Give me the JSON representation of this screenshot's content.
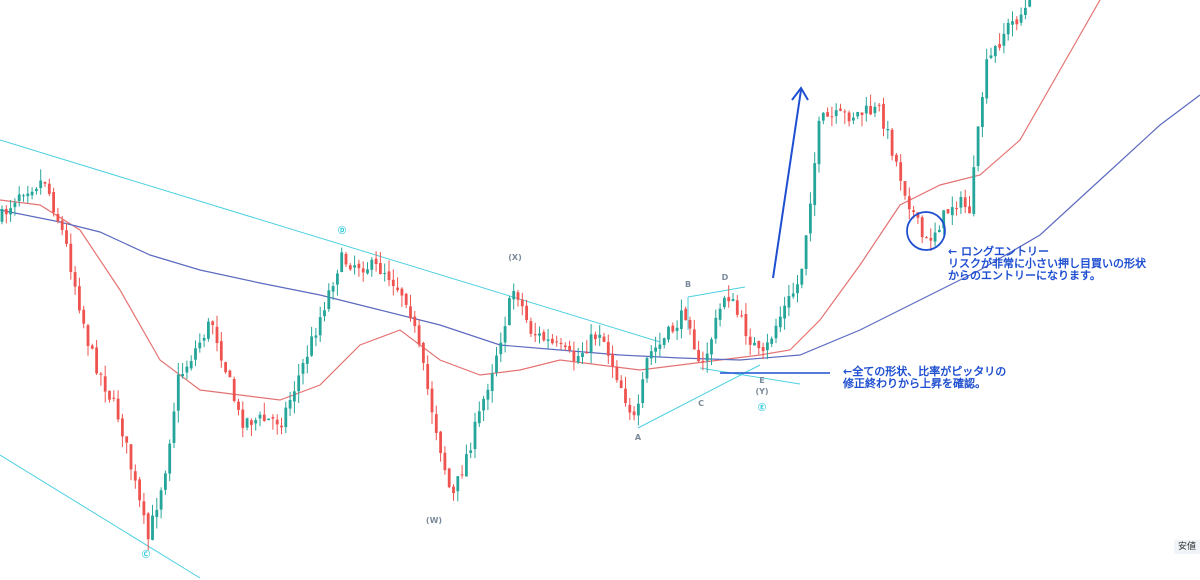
{
  "chart_data": {
    "type": "candlestick",
    "title": "",
    "xlabel": "",
    "ylabel": "",
    "ylim": [
      0,
      580
    ],
    "colors": {
      "up": "#26a69a",
      "down": "#ef5350",
      "ma_fast": "#e57373",
      "ma_slow": "#5c6bc0",
      "trendline": "#4dd0e1",
      "annotation": "#1f4fd1",
      "wave_label": "#7b8a9a",
      "wave_label_circled": "#26c6da"
    },
    "series": [
      {
        "name": "",
        "kind": "price_path",
        "x": [
          0,
          20,
          45,
          65,
          90,
          120,
          148,
          165,
          178,
          212,
          240,
          282,
          305,
          340,
          385,
          408,
          430,
          452,
          478,
          515,
          530,
          575,
          600,
          636,
          648,
          660,
          688,
          700,
          726,
          740,
          762,
          778,
          800,
          820,
          880,
          905,
          925,
          955,
          970,
          985,
          1005,
          1030
        ],
        "y": [
          220,
          190,
          180,
          240,
          350,
          420,
          540,
          470,
          380,
          320,
          420,
          420,
          360,
          260,
          270,
          300,
          400,
          500,
          420,
          285,
          330,
          360,
          330,
          425,
          355,
          345,
          310,
          375,
          290,
          320,
          360,
          320,
          280,
          120,
          110,
          190,
          245,
          200,
          210,
          70,
          30,
          5
        ]
      },
      {
        "name": "",
        "kind": "ma_fast",
        "x": [
          0,
          40,
          80,
          120,
          160,
          200,
          240,
          280,
          320,
          360,
          400,
          440,
          480,
          520,
          560,
          600,
          640,
          680,
          720,
          760,
          790,
          820,
          860,
          900,
          940,
          980,
          1020,
          1060,
          1100
        ],
        "y": [
          200,
          205,
          230,
          290,
          360,
          390,
          395,
          400,
          385,
          345,
          330,
          360,
          375,
          370,
          360,
          365,
          370,
          365,
          360,
          355,
          350,
          320,
          265,
          205,
          185,
          175,
          140,
          70,
          0
        ]
      },
      {
        "name": "",
        "kind": "ma_slow",
        "x": [
          0,
          60,
          100,
          150,
          200,
          260,
          320,
          380,
          440,
          500,
          560,
          620,
          680,
          740,
          800,
          860,
          920,
          980,
          1040,
          1100,
          1160,
          1200
        ],
        "y": [
          210,
          222,
          232,
          255,
          270,
          283,
          295,
          310,
          325,
          345,
          350,
          355,
          358,
          360,
          355,
          330,
          300,
          270,
          235,
          180,
          125,
          95
        ]
      }
    ],
    "wave_labels": [
      {
        "text": "Ⓓ",
        "x": 342,
        "y": 233,
        "circled": true
      },
      {
        "text": "(X)",
        "x": 515,
        "y": 260
      },
      {
        "text": "B",
        "x": 688,
        "y": 287
      },
      {
        "text": "D",
        "x": 725,
        "y": 280
      },
      {
        "text": "A",
        "x": 638,
        "y": 440
      },
      {
        "text": "C",
        "x": 701,
        "y": 406
      },
      {
        "text": "E",
        "x": 762,
        "y": 383
      },
      {
        "text": "(Y)",
        "x": 762,
        "y": 394
      },
      {
        "text": "Ⓔ",
        "x": 762,
        "y": 410,
        "circled": true
      },
      {
        "text": "(W)",
        "x": 434,
        "y": 523
      },
      {
        "text": "Ⓒ",
        "x": 146,
        "y": 557,
        "circled": true
      }
    ],
    "annotations": [
      {
        "lines": [
          "← ロングエントリー",
          "リスクが非常に小さい押し目買いの形状",
          "からのエントリーになります。"
        ],
        "x": 948,
        "y": 255
      },
      {
        "lines": [
          "←全ての形状、比率がピッタリの",
          "修正終わりから上昇を確認。"
        ],
        "x": 843,
        "y": 375
      }
    ],
    "price_axis_label": "安値"
  }
}
